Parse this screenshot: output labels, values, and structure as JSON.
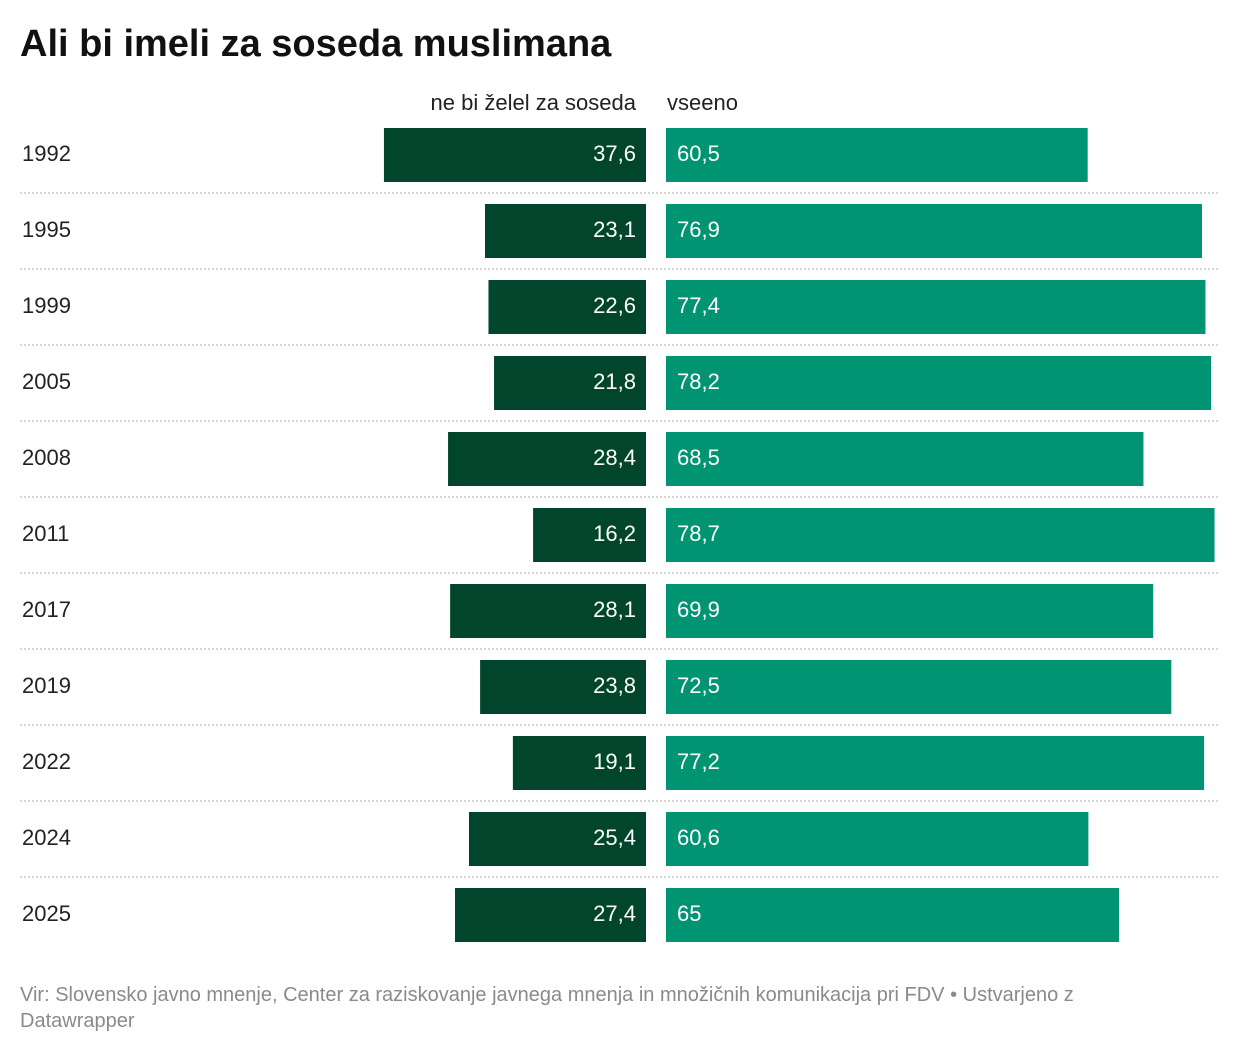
{
  "chart_data": {
    "type": "bar",
    "title": "Ali bi imeli za soseda muslimana",
    "categories": [
      "1992",
      "1995",
      "1999",
      "2005",
      "2008",
      "2011",
      "2017",
      "2019",
      "2022",
      "2024",
      "2025"
    ],
    "series": [
      {
        "name": "ne bi želel za soseda",
        "color": "#01452c",
        "values": [
          37.6,
          23.1,
          22.6,
          21.8,
          28.4,
          16.2,
          28.1,
          23.8,
          19.1,
          25.4,
          27.4
        ],
        "value_labels": [
          "37,6",
          "23,1",
          "22,6",
          "21,8",
          "28,4",
          "16,2",
          "28,1",
          "23,8",
          "19,1",
          "25,4",
          "27,4"
        ]
      },
      {
        "name": "vseeno",
        "color": "#009473",
        "values": [
          60.5,
          76.9,
          77.4,
          78.2,
          68.5,
          78.7,
          69.9,
          72.5,
          77.2,
          60.6,
          65
        ],
        "value_labels": [
          "60,5",
          "76,9",
          "77,4",
          "78,2",
          "68,5",
          "78,7",
          "69,9",
          "72,5",
          "77,2",
          "60,6",
          "65"
        ]
      }
    ],
    "source": "Vir: Slovensko javno mnenje, Center za raziskovanje javnega mnenja in množičnih komunikacija pri FDV • Ustvarjeno z Datawrapper"
  }
}
